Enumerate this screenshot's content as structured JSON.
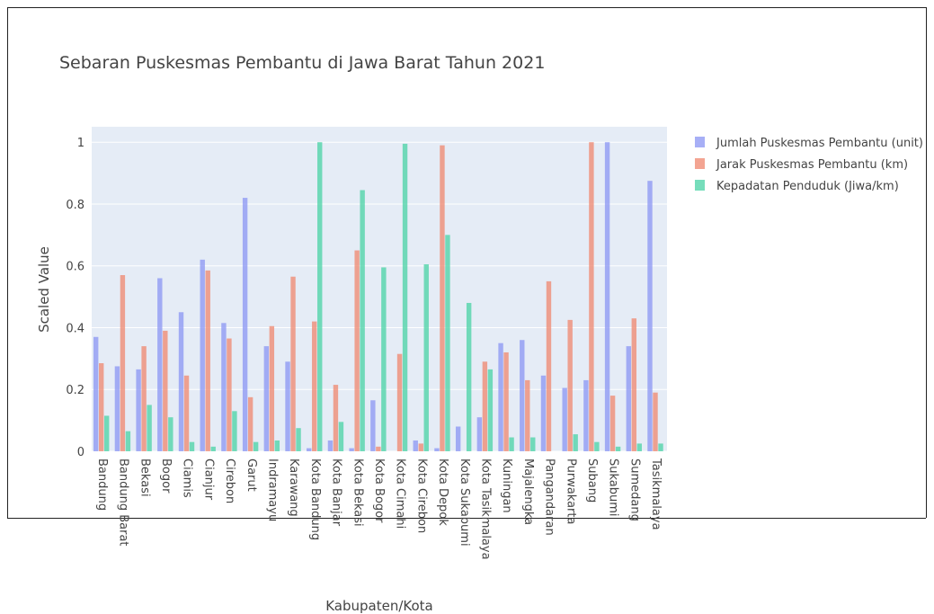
{
  "chart_data": {
    "type": "bar",
    "title": "Sebaran Puskesmas Pembantu di Jawa Barat Tahun 2021",
    "xlabel": "Kabupaten/Kota",
    "ylabel": "Scaled Value",
    "ylim": [
      0,
      1.05
    ],
    "yticks": [
      "0",
      "0.2",
      "0.4",
      "0.6",
      "0.8",
      "1"
    ],
    "ytick_values": [
      0,
      0.2,
      0.4,
      0.6,
      0.8,
      1
    ],
    "grid": true,
    "legend_position": "top-right",
    "categories": [
      "Bandung",
      "Bandung Barat",
      "Bekasi",
      "Bogor",
      "Ciamis",
      "Cianjur",
      "Cirebon",
      "Garut",
      "Indramayu",
      "Karawang",
      "Kota Bandung",
      "Kota Banjar",
      "Kota Bekasi",
      "Kota Bogor",
      "Kota Cimahi",
      "Kota Cirebon",
      "Kota Depok",
      "Kota Sukabumi",
      "Kota Tasikmalaya",
      "Kuningan",
      "Majalengka",
      "Pangandaran",
      "Purwakarta",
      "Subang",
      "Sukabumi",
      "Sumedang",
      "Tasikmalaya"
    ],
    "series": [
      {
        "name": "Jumlah Puskesmas Pembantu (unit)",
        "color": "#8e99f3",
        "values": [
          0.37,
          0.275,
          0.265,
          0.56,
          0.45,
          0.62,
          0.415,
          0.82,
          0.34,
          0.29,
          0.01,
          0.035,
          0.01,
          0.165,
          0.0,
          0.035,
          0.01,
          0.08,
          0.11,
          0.35,
          0.36,
          0.245,
          0.205,
          0.23,
          1.0,
          0.34,
          0.875
        ]
      },
      {
        "name": "Jarak Puskesmas Pembantu (km)",
        "color": "#ef8a73",
        "values": [
          0.285,
          0.57,
          0.34,
          0.39,
          0.245,
          0.585,
          0.365,
          0.175,
          0.405,
          0.565,
          0.42,
          0.215,
          0.65,
          0.015,
          0.315,
          0.025,
          0.99,
          0.0,
          0.29,
          0.32,
          0.23,
          0.55,
          0.425,
          1.0,
          0.18,
          0.43,
          0.19
        ]
      },
      {
        "name": "Kepadatan Penduduk (Jiwa/km)",
        "color": "#4fd3a8",
        "values": [
          0.115,
          0.065,
          0.15,
          0.11,
          0.03,
          0.015,
          0.13,
          0.03,
          0.035,
          0.075,
          1.0,
          0.095,
          0.845,
          0.595,
          0.995,
          0.605,
          0.7,
          0.48,
          0.265,
          0.045,
          0.045,
          0.0,
          0.055,
          0.03,
          0.015,
          0.025,
          0.025
        ]
      }
    ]
  }
}
